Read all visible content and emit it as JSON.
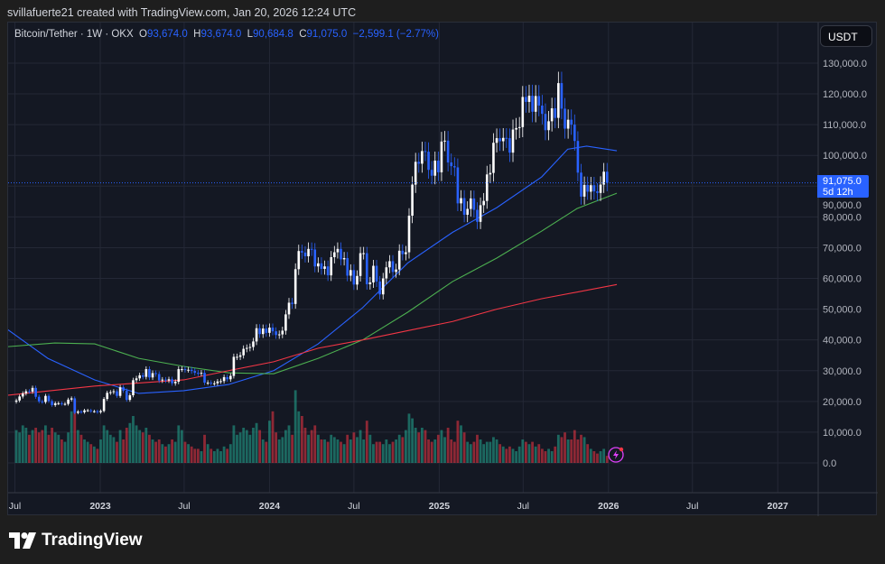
{
  "credit": "svillafuerte21 created with TradingView.com, Jan 20, 2026 12:24 UTC",
  "legend": {
    "symbol": "Bitcoin/Tether · 1W · OKX",
    "o_label": "O",
    "o": "93,674.0",
    "h_label": "H",
    "h": "93,674.0",
    "l_label": "L",
    "l": "90,684.8",
    "c_label": "C",
    "c": "91,075.0",
    "change": "−2,599.1 (−2.77%)"
  },
  "currency": "USDT",
  "price_tag": {
    "price": "91,075.0",
    "countdown": "5d 12h"
  },
  "logo": "TradingView",
  "colors": {
    "up": "#ffffff",
    "down": "#2962ff",
    "vol_up": "#22ab94",
    "vol_down": "#f23645",
    "ma_blue": "#2962ff",
    "ma_green": "#4caf50",
    "ma_red": "#f23645",
    "alert": "#e040fb"
  },
  "chart_data": {
    "type": "candlestick",
    "interval": "1W",
    "first_week": "2022-07-04",
    "price_ticks": [
      "0.0",
      "10,000.0",
      "20,000.0",
      "30,000.0",
      "40,000.0",
      "50,000.0",
      "60,000.0",
      "70,000.0",
      "80,000.0",
      "90,000.0",
      "100,000.0",
      "110,000.0",
      "120,000.0",
      "130,000.0"
    ],
    "ylim": [
      0,
      135000
    ],
    "time_ticks": [
      {
        "label": "Jul",
        "date": "2022-07-01",
        "bold": false
      },
      {
        "label": "2023",
        "date": "2023-01-01",
        "bold": true
      },
      {
        "label": "Jul",
        "date": "2023-07-01",
        "bold": false
      },
      {
        "label": "2024",
        "date": "2024-01-01",
        "bold": true
      },
      {
        "label": "Jul",
        "date": "2024-07-01",
        "bold": false
      },
      {
        "label": "2025",
        "date": "2025-01-01",
        "bold": true
      },
      {
        "label": "Jul",
        "date": "2025-07-01",
        "bold": false
      },
      {
        "label": "2026",
        "date": "2026-01-01",
        "bold": true
      },
      {
        "label": "Jul",
        "date": "2026-07-01",
        "bold": false
      },
      {
        "label": "2027",
        "date": "2027-01-01",
        "bold": true
      }
    ],
    "closes_k": [
      20.3,
      21.6,
      22.6,
      23.3,
      23.2,
      24.4,
      21.5,
      20.0,
      19.8,
      21.8,
      20.1,
      18.8,
      19.4,
      19.4,
      19.2,
      19.2,
      20.6,
      21.0,
      16.3,
      16.7,
      16.5,
      17.1,
      17.1,
      16.8,
      16.8,
      16.5,
      16.9,
      20.8,
      22.8,
      23.0,
      23.3,
      21.8,
      24.6,
      23.5,
      20.5,
      22.0,
      26.9,
      27.5,
      28.5,
      28.0,
      30.5,
      27.8,
      29.2,
      28.9,
      26.8,
      27.1,
      26.8,
      27.2,
      25.9,
      26.4,
      30.5,
      30.5,
      30.3,
      30.3,
      29.9,
      29.3,
      29.1,
      29.3,
      26.1,
      26.1,
      25.9,
      25.9,
      26.5,
      26.6,
      27.9,
      27.2,
      28.3,
      34.5,
      34.5,
      35.0,
      37.1,
      37.4,
      37.7,
      39.5,
      43.8,
      41.9,
      43.7,
      42.3,
      44.0,
      42.8,
      41.6,
      41.8,
      43.0,
      48.3,
      52.1,
      51.7,
      63.0,
      68.9,
      68.4,
      67.2,
      69.6,
      69.4,
      63.9,
      64.9,
      63.1,
      63.9,
      61.0,
      66.9,
      68.5,
      69.6,
      66.2,
      66.6,
      60.9,
      62.7,
      58.0,
      60.8,
      68.2,
      68.2,
      58.1,
      58.7,
      64.1,
      59.0,
      54.8,
      60.0,
      63.6,
      65.6,
      62.1,
      62.9,
      69.0,
      67.9,
      68.5,
      80.4,
      90.5,
      97.9,
      97.3,
      101.4,
      101.2,
      95.3,
      93.4,
      98.3,
      94.5,
      104.5,
      104.8,
      97.7,
      96.5,
      96.1,
      84.4,
      86.1,
      80.7,
      82.6,
      86.0,
      82.3,
      78.4,
      83.8,
      85.2,
      93.8,
      94.3,
      104.1,
      105.6,
      104.6,
      105.7,
      105.6,
      100.9,
      108.4,
      108.9,
      109.2,
      119.0,
      117.4,
      119.4,
      114.2,
      119.3,
      116.2,
      113.5,
      108.2,
      111.1,
      115.3,
      112.2,
      123.5,
      115.2,
      108.7,
      111.6,
      110.0,
      104.7,
      94.4,
      86.6,
      90.4,
      88.2,
      90.3,
      88.3,
      87.8,
      90.5,
      94.7,
      91.075
    ],
    "volume": [
      14,
      13,
      16,
      15,
      12,
      14,
      15,
      13,
      14,
      16,
      12,
      15,
      13,
      12,
      10,
      9,
      13,
      22,
      27,
      14,
      12,
      10,
      9,
      8,
      7,
      6,
      10,
      16,
      14,
      12,
      11,
      9,
      14,
      10,
      15,
      17,
      20,
      16,
      14,
      13,
      15,
      12,
      10,
      9,
      10,
      8,
      7,
      8,
      10,
      9,
      16,
      14,
      9,
      8,
      7,
      6,
      6,
      5,
      12,
      8,
      6,
      5,
      6,
      5,
      7,
      6,
      8,
      16,
      12,
      13,
      15,
      14,
      12,
      15,
      17,
      14,
      10,
      9,
      18,
      22,
      13,
      10,
      11,
      14,
      16,
      12,
      31,
      22,
      20,
      15,
      12,
      14,
      16,
      12,
      10,
      10,
      9,
      12,
      11,
      10,
      9,
      8,
      12,
      10,
      13,
      11,
      14,
      10,
      18,
      12,
      8,
      9,
      9,
      8,
      10,
      8,
      9,
      10,
      12,
      11,
      14,
      21,
      19,
      15,
      13,
      15,
      14,
      10,
      9,
      10,
      12,
      14,
      11,
      15,
      10,
      9,
      18,
      16,
      13,
      9,
      8,
      9,
      12,
      10,
      8,
      9,
      9,
      11,
      10,
      8,
      7,
      6,
      7,
      6,
      5,
      7,
      10,
      9,
      8,
      9,
      7,
      8,
      6,
      5,
      6,
      5,
      7,
      12,
      11,
      13,
      10,
      10,
      14,
      10,
      12,
      11,
      8,
      6,
      5,
      4,
      5,
      6,
      3
    ],
    "moving_averages": [
      {
        "color": "#2962ff",
        "points": [
          [
            "2022-06-15",
            43.4
          ],
          [
            "2022-09-10",
            34
          ],
          [
            "2022-12-20",
            27
          ],
          [
            "2023-03-25",
            22.6
          ],
          [
            "2023-06-30",
            23.5
          ],
          [
            "2023-10-05",
            25.5
          ],
          [
            "2024-01-10",
            30
          ],
          [
            "2024-04-15",
            38.7
          ],
          [
            "2024-07-20",
            50.5
          ],
          [
            "2024-10-25",
            65
          ],
          [
            "2025-01-30",
            75
          ],
          [
            "2025-05-05",
            83
          ],
          [
            "2025-08-10",
            93
          ],
          [
            "2025-10-05",
            102
          ],
          [
            "2025-11-15",
            103
          ],
          [
            "2026-01-19",
            101.5
          ]
        ]
      },
      {
        "color": "#4caf50",
        "points": [
          [
            "2022-06-15",
            37.8
          ],
          [
            "2022-09-25",
            39
          ],
          [
            "2022-12-20",
            38.7
          ],
          [
            "2023-03-25",
            34
          ],
          [
            "2023-06-30",
            31.4
          ],
          [
            "2023-10-05",
            29.3
          ],
          [
            "2024-01-10",
            29
          ],
          [
            "2024-04-15",
            34
          ],
          [
            "2024-07-20",
            40
          ],
          [
            "2024-10-25",
            49
          ],
          [
            "2025-01-30",
            59
          ],
          [
            "2025-05-05",
            66.6
          ],
          [
            "2025-08-10",
            75.4
          ],
          [
            "2025-10-25",
            82.7
          ],
          [
            "2026-01-19",
            87.7
          ]
        ]
      },
      {
        "color": "#f23645",
        "points": [
          [
            "2022-06-15",
            22
          ],
          [
            "2022-12-20",
            25
          ],
          [
            "2023-06-30",
            27
          ],
          [
            "2023-10-05",
            30
          ],
          [
            "2024-01-10",
            32.9
          ],
          [
            "2024-04-15",
            37.3
          ],
          [
            "2024-07-20",
            40
          ],
          [
            "2024-10-25",
            43
          ],
          [
            "2025-01-30",
            46
          ],
          [
            "2025-05-05",
            50
          ],
          [
            "2025-08-10",
            53.4
          ],
          [
            "2026-01-19",
            58
          ]
        ]
      }
    ]
  }
}
